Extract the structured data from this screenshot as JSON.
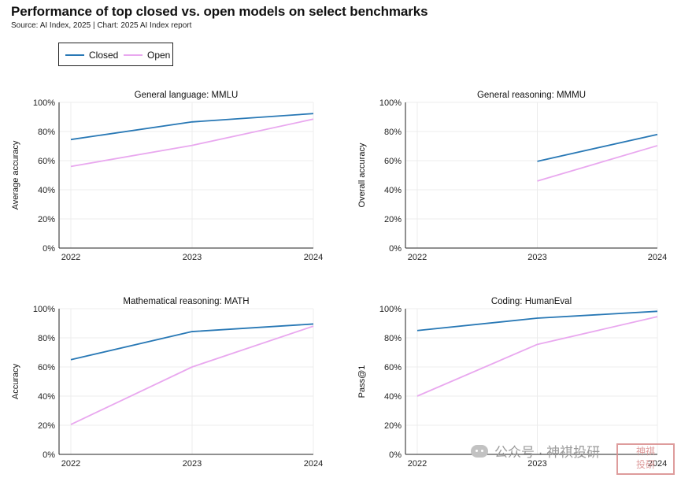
{
  "header": {
    "title": "Performance of top closed vs. open models on select benchmarks",
    "subtitle": "Source: AI Index, 2025 | Chart: 2025 AI Index report"
  },
  "legend": {
    "closed_label": "Closed",
    "open_label": "Open"
  },
  "colors": {
    "closed": "#2878b5",
    "open": "#e9a8ef",
    "axis": "#222222",
    "grid": "#ececec"
  },
  "watermark": {
    "text": "公众号 · 神祺投研",
    "seal": "神祺投研"
  },
  "chart_data": [
    {
      "type": "line",
      "title": "General language: MMLU",
      "xlabel": "",
      "ylabel": "Average accuracy",
      "x": [
        "2022",
        "2023",
        "2024"
      ],
      "ylim": [
        0,
        100
      ],
      "yticks": [
        "0%",
        "20%",
        "40%",
        "60%",
        "80%",
        "100%"
      ],
      "series": [
        {
          "name": "Closed",
          "values": [
            74.5,
            86.6,
            92.3
          ]
        },
        {
          "name": "Open",
          "values": [
            56.0,
            70.5,
            88.5
          ]
        }
      ]
    },
    {
      "type": "line",
      "title": "General reasoning: MMMU",
      "xlabel": "",
      "ylabel": "Overall accuracy",
      "x": [
        "2022",
        "2023",
        "2024"
      ],
      "ylim": [
        0,
        100
      ],
      "yticks": [
        "0%",
        "20%",
        "40%",
        "60%",
        "80%",
        "100%"
      ],
      "series": [
        {
          "name": "Closed",
          "values": [
            null,
            59.5,
            78.0
          ]
        },
        {
          "name": "Open",
          "values": [
            null,
            46.0,
            70.3
          ]
        }
      ]
    },
    {
      "type": "line",
      "title": "Mathematical reasoning: MATH",
      "xlabel": "",
      "ylabel": "Accuracy",
      "x": [
        "2022",
        "2023",
        "2024"
      ],
      "ylim": [
        0,
        100
      ],
      "yticks": [
        "0%",
        "20%",
        "40%",
        "60%",
        "80%",
        "100%"
      ],
      "series": [
        {
          "name": "Closed",
          "values": [
            65.0,
            84.3,
            89.5
          ]
        },
        {
          "name": "Open",
          "values": [
            20.5,
            60.0,
            88.0
          ]
        }
      ]
    },
    {
      "type": "line",
      "title": "Coding: HumanEval",
      "xlabel": "",
      "ylabel": "Pass@1",
      "x": [
        "2022",
        "2023",
        "2024"
      ],
      "ylim": [
        0,
        100
      ],
      "yticks": [
        "0%",
        "20%",
        "40%",
        "60%",
        "80%",
        "100%"
      ],
      "series": [
        {
          "name": "Closed",
          "values": [
            85.0,
            93.5,
            98.2
          ]
        },
        {
          "name": "Open",
          "values": [
            40.0,
            75.5,
            94.5
          ]
        }
      ]
    }
  ]
}
